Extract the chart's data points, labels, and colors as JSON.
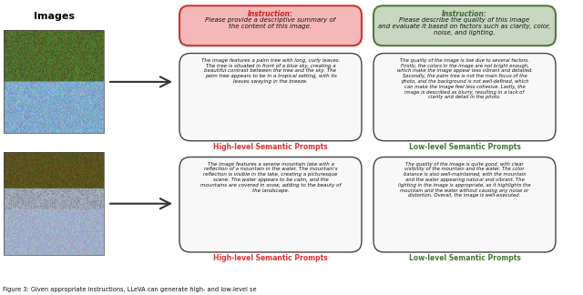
{
  "bg_color": "#ffffff",
  "instruction_red_bg": "#f5b8b8",
  "instruction_green_bg": "#c8d8c0",
  "instruction_red_border": "#cc3333",
  "instruction_green_border": "#557744",
  "box_border": "#444444",
  "red_color": "#cc2222",
  "green_color": "#446633",
  "label_red": "#dd3333",
  "label_green": "#447733",
  "text_dark": "#222222",
  "caption": "Figure 3: Given appropriate instructions, LLeVA can generate high- and low-level se",
  "images_label": "Images",
  "label_high": "High-level Semantic Prompts",
  "label_low": "Low-level Semantic Prompts",
  "instr_high_word": "Instruction:",
  "instr_high_body": "Please provide a descriptive summary of\nthe content of this image.",
  "instr_low_word": "Instruction:",
  "instr_low_body": "Please describe the quality of this image\nand evaluate it based on factors such as clarity, color,\nnoise, and lighting."
}
